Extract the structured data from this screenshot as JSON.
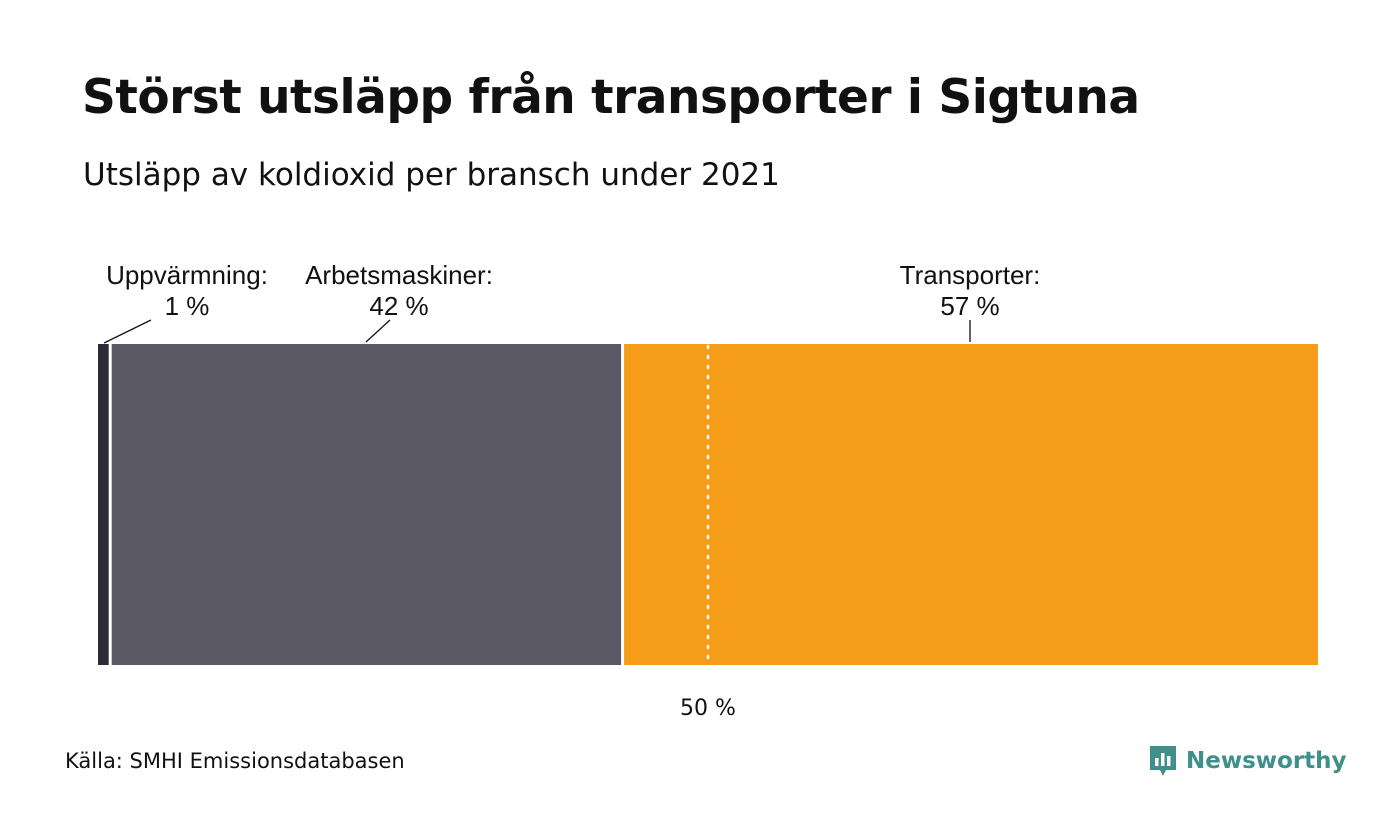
{
  "title": "Störst utsläpp från transporter i Sigtuna",
  "subtitle": "Utsläpp av koldioxid per bransch under 2021",
  "chart_data": {
    "type": "bar",
    "orientation": "horizontal-stacked-100",
    "segments": [
      {
        "name": "Uppvärmning:",
        "label": "1 %",
        "value": 1,
        "color": "#2c2a36"
      },
      {
        "name": "Arbetsmaskiner:",
        "label": "42 %",
        "value": 42,
        "color": "#5a5865"
      },
      {
        "name": "Transporter:",
        "label": "57 %",
        "value": 57,
        "color": "#f59d18"
      }
    ],
    "reference_line": {
      "value": 50,
      "label": "50 %"
    },
    "xlim": [
      0,
      100
    ]
  },
  "source": "Källa: SMHI Emissionsdatabasen",
  "logo": {
    "text": "Newsworthy",
    "icon": "newsworthy-chart-icon",
    "color": "#3f8f8a"
  }
}
